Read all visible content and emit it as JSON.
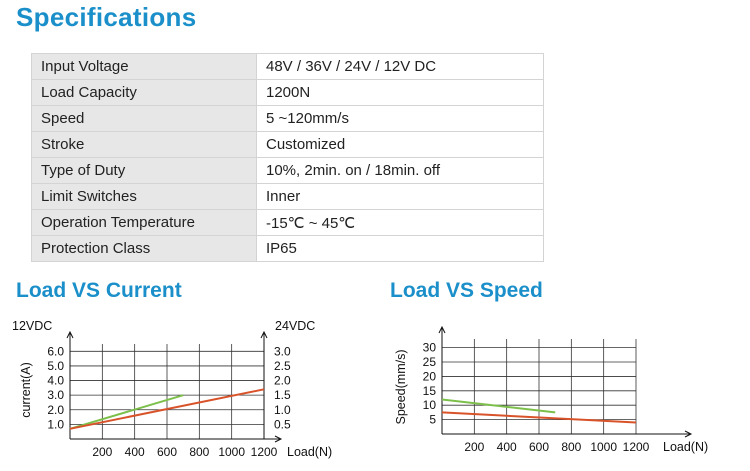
{
  "headings": {
    "specifications": "Specifications",
    "load_vs_current": "Load VS Current",
    "load_vs_speed": "Load VS Speed"
  },
  "specs": [
    {
      "label": "Input Voltage",
      "value": "48V / 36V / 24V / 12V DC"
    },
    {
      "label": "Load Capacity",
      "value": "1200N"
    },
    {
      "label": "Speed",
      "value": "5 ~120mm/s"
    },
    {
      "label": "Stroke",
      "value": "Customized"
    },
    {
      "label": "Type of Duty",
      "value": "10%, 2min. on / 18min. off"
    },
    {
      "label": "Limit Switches",
      "value": "Inner"
    },
    {
      "label": "Operation Temperature",
      "value": "-15℃ ~ 45℃"
    },
    {
      "label": "Protection Class",
      "value": "IP65"
    }
  ],
  "colors": {
    "heading": "#1a8fc9",
    "green_line": "#7cc04b",
    "red_line": "#d9532a",
    "grid": "#333333"
  },
  "chart_data": [
    {
      "type": "line",
      "title": "Load VS Current",
      "xlabel": "Load(N)",
      "ylabel": "current(A)",
      "left_axis_title": "12VDC",
      "right_axis_title": "24VDC",
      "xlim": [
        0,
        1200
      ],
      "x_ticks": [
        200,
        400,
        600,
        800,
        1000,
        1200
      ],
      "ylim": [
        0,
        6.5
      ],
      "y_ticks": [
        "1.0",
        "2.0",
        "3.0",
        "4.0",
        "5.0",
        "6.0"
      ],
      "y_tick_values": [
        1,
        2,
        3,
        4,
        5,
        6
      ],
      "y2_ticks": [
        "0.5",
        "1.0",
        "1.5",
        "2.0",
        "2.5",
        "3.0"
      ],
      "grid": true,
      "series": [
        {
          "color": "#7cc04b",
          "x": [
            0,
            700
          ],
          "y": [
            0.7,
            3.0
          ]
        },
        {
          "color": "#d9532a",
          "x": [
            0,
            1200
          ],
          "y": [
            0.7,
            3.4
          ]
        }
      ]
    },
    {
      "type": "line",
      "title": "Load VS Speed",
      "xlabel": "Load(N)",
      "ylabel": "Speed(mm/s)",
      "xlim": [
        0,
        1200
      ],
      "x_ticks": [
        200,
        400,
        600,
        800,
        1000,
        1200
      ],
      "ylim": [
        0,
        33
      ],
      "y_ticks": [
        "5",
        "10",
        "15",
        "20",
        "25",
        "30"
      ],
      "y_tick_values": [
        5,
        10,
        15,
        20,
        25,
        30
      ],
      "grid": true,
      "series": [
        {
          "color": "#7cc04b",
          "x": [
            0,
            700
          ],
          "y": [
            12,
            7.5
          ]
        },
        {
          "color": "#d9532a",
          "x": [
            0,
            1200
          ],
          "y": [
            7.5,
            4
          ]
        }
      ]
    }
  ]
}
